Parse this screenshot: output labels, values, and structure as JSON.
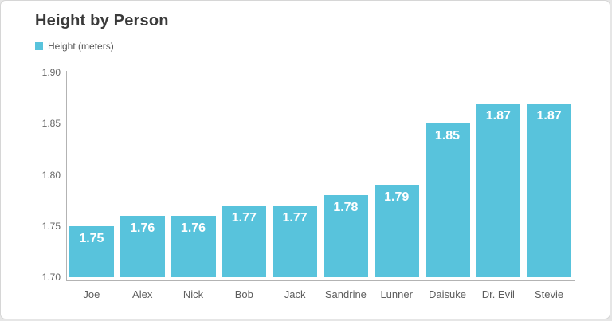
{
  "header": {
    "title": "Height by Person"
  },
  "legend": {
    "label": "Height (meters)"
  },
  "colors": {
    "bar": "#58c3dc",
    "value_label": "#ffffff",
    "title": "#3a3a3a",
    "axis_line": "#b3b3b3",
    "tick_label": "#666666"
  },
  "chart_data": {
    "type": "bar",
    "title": "Height by Person",
    "series_name": "Height (meters)",
    "categories": [
      "Joe",
      "Alex",
      "Nick",
      "Bob",
      "Jack",
      "Sandrine",
      "Lunner",
      "Daisuke",
      "Dr. Evil",
      "Stevie"
    ],
    "values": [
      1.75,
      1.76,
      1.76,
      1.77,
      1.77,
      1.78,
      1.79,
      1.85,
      1.87,
      1.87
    ],
    "value_labels": [
      "1.75",
      "1.76",
      "1.76",
      "1.77",
      "1.77",
      "1.78",
      "1.79",
      "1.85",
      "1.87",
      "1.87"
    ],
    "xlabel": "",
    "ylabel": "",
    "ylim": [
      1.7,
      1.9
    ],
    "yticks": [
      1.7,
      1.75,
      1.8,
      1.85,
      1.9
    ],
    "ytick_labels": [
      "1.70",
      "1.75",
      "1.80",
      "1.85",
      "1.90"
    ],
    "grid": false,
    "legend_position": "top-left",
    "bar_color": "#58c3dc"
  }
}
